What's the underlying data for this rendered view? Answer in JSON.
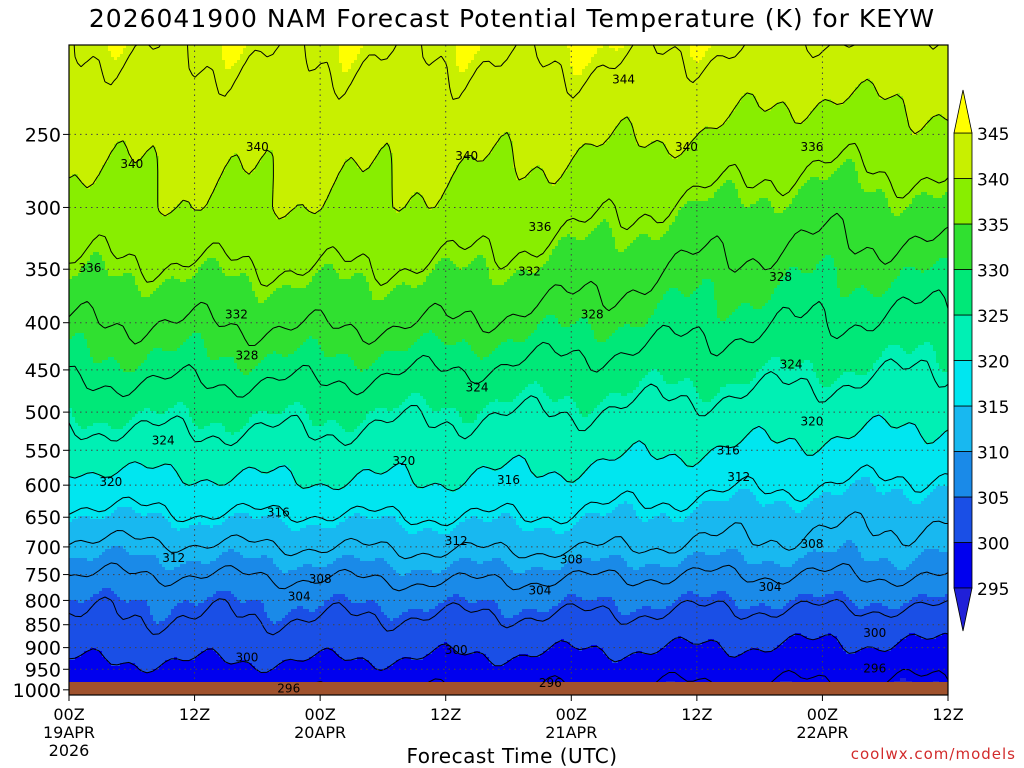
{
  "chart_data": {
    "type": "heatmap",
    "title": "2026041900 NAM Forecast Potential Temperature (K) for KEYW",
    "xlabel": "Forecast Time (UTC)",
    "ylabel": "",
    "station": "KEYW",
    "variable": "Potential Temperature",
    "units": "K",
    "x_ticks": [
      {
        "hour": 0,
        "label": "00Z",
        "date": "19APR",
        "year": "2026"
      },
      {
        "hour": 12,
        "label": "12Z",
        "date": "",
        "year": ""
      },
      {
        "hour": 24,
        "label": "00Z",
        "date": "20APR",
        "year": ""
      },
      {
        "hour": 36,
        "label": "12Z",
        "date": "",
        "year": ""
      },
      {
        "hour": 48,
        "label": "00Z",
        "date": "21APR",
        "year": ""
      },
      {
        "hour": 60,
        "label": "12Z",
        "date": "",
        "year": ""
      },
      {
        "hour": 72,
        "label": "00Z",
        "date": "22APR",
        "year": ""
      },
      {
        "hour": 84,
        "label": "12Z",
        "date": "",
        "year": ""
      }
    ],
    "xlim": [
      0,
      84
    ],
    "y_ticks": [
      250,
      300,
      350,
      400,
      450,
      500,
      550,
      600,
      650,
      700,
      750,
      800,
      850,
      900,
      950,
      1000
    ],
    "ylim": [
      1013,
      200
    ],
    "y_scale": "log",
    "grid": true,
    "colorbar": {
      "levels": [
        295,
        300,
        305,
        310,
        315,
        320,
        325,
        330,
        335,
        340,
        345
      ],
      "colors": [
        "#2020d8",
        "#0000ee",
        "#1a4fe6",
        "#1a8ae8",
        "#18b8f0",
        "#00e6f0",
        "#00f0b4",
        "#00e878",
        "#30e030",
        "#88ee00",
        "#c8f000",
        "#ffff00"
      ],
      "extend": "both"
    },
    "contour_levels": [
      296,
      300,
      304,
      308,
      312,
      316,
      320,
      324,
      328,
      332,
      336,
      340,
      344
    ],
    "profile_times": [
      0,
      12,
      24,
      36,
      48,
      60,
      72,
      84
    ],
    "profile_pressures": [
      1000,
      950,
      900,
      850,
      800,
      750,
      700,
      650,
      600,
      550,
      500,
      450,
      400,
      350,
      300,
      250,
      200
    ],
    "profiles": [
      [
        296.5,
        299.0,
        301.5,
        303.5,
        305.0,
        308.0,
        311.0,
        314.5,
        318.0,
        322.0,
        325.5,
        329.0,
        332.0,
        335.5,
        338.5,
        341.0,
        344.0
      ],
      [
        296.5,
        299.2,
        301.5,
        303.5,
        305.0,
        308.0,
        311.5,
        315.5,
        319.0,
        322.5,
        325.5,
        329.0,
        332.0,
        335.5,
        339.5,
        341.5,
        344.5
      ],
      [
        296.3,
        299.0,
        301.5,
        303.5,
        305.5,
        308.5,
        312.0,
        315.5,
        319.5,
        322.5,
        325.5,
        329.0,
        332.5,
        336.0,
        339.5,
        341.5,
        344.5
      ],
      [
        296.0,
        298.5,
        301.0,
        303.0,
        305.5,
        309.0,
        312.5,
        316.0,
        319.5,
        322.0,
        324.5,
        328.0,
        332.0,
        335.5,
        339.0,
        341.5,
        344.5
      ],
      [
        295.8,
        298.0,
        300.5,
        303.0,
        305.5,
        308.5,
        312.5,
        315.5,
        318.5,
        321.5,
        324.0,
        327.0,
        330.5,
        334.0,
        337.5,
        341.0,
        345.0
      ],
      [
        295.3,
        297.5,
        300.0,
        302.5,
        305.0,
        308.0,
        311.5,
        314.0,
        317.0,
        320.0,
        323.0,
        326.0,
        329.0,
        331.5,
        335.0,
        340.0,
        344.5
      ],
      [
        295.2,
        297.3,
        299.5,
        302.0,
        305.0,
        308.0,
        311.0,
        313.0,
        316.0,
        319.0,
        322.0,
        325.0,
        328.0,
        330.5,
        333.5,
        337.5,
        343.5
      ],
      [
        295.0,
        297.0,
        299.5,
        302.0,
        305.0,
        308.5,
        310.5,
        312.5,
        315.0,
        318.0,
        321.0,
        324.0,
        327.0,
        330.5,
        334.5,
        339.0,
        343.0
      ]
    ],
    "contour_labels": [
      {
        "value": "296",
        "hour": 21,
        "p": 997
      },
      {
        "value": "296",
        "hour": 46,
        "p": 983
      },
      {
        "value": "296",
        "hour": 77,
        "p": 948
      },
      {
        "value": "300",
        "hour": 17,
        "p": 922
      },
      {
        "value": "300",
        "hour": 37,
        "p": 905
      },
      {
        "value": "300",
        "hour": 77,
        "p": 868
      },
      {
        "value": "304",
        "hour": 22,
        "p": 792
      },
      {
        "value": "304",
        "hour": 45,
        "p": 780
      },
      {
        "value": "304",
        "hour": 67,
        "p": 774
      },
      {
        "value": "308",
        "hour": 24,
        "p": 758
      },
      {
        "value": "308",
        "hour": 48,
        "p": 722
      },
      {
        "value": "308",
        "hour": 71,
        "p": 695
      },
      {
        "value": "312",
        "hour": 10,
        "p": 720
      },
      {
        "value": "312",
        "hour": 37,
        "p": 690
      },
      {
        "value": "312",
        "hour": 64,
        "p": 588
      },
      {
        "value": "316",
        "hour": 20,
        "p": 642
      },
      {
        "value": "316",
        "hour": 42,
        "p": 592
      },
      {
        "value": "316",
        "hour": 63,
        "p": 550
      },
      {
        "value": "320",
        "hour": 4,
        "p": 595
      },
      {
        "value": "320",
        "hour": 32,
        "p": 565
      },
      {
        "value": "320",
        "hour": 71,
        "p": 512
      },
      {
        "value": "324",
        "hour": 9,
        "p": 537
      },
      {
        "value": "324",
        "hour": 39,
        "p": 470
      },
      {
        "value": "324",
        "hour": 69,
        "p": 444
      },
      {
        "value": "328",
        "hour": 17,
        "p": 434
      },
      {
        "value": "328",
        "hour": 50,
        "p": 392
      },
      {
        "value": "328",
        "hour": 68,
        "p": 357
      },
      {
        "value": "332",
        "hour": 16,
        "p": 392
      },
      {
        "value": "332",
        "hour": 44,
        "p": 352
      },
      {
        "value": "336",
        "hour": 2,
        "p": 349
      },
      {
        "value": "336",
        "hour": 45,
        "p": 315
      },
      {
        "value": "336",
        "hour": 71,
        "p": 258
      },
      {
        "value": "340",
        "hour": 6,
        "p": 269
      },
      {
        "value": "340",
        "hour": 18,
        "p": 258
      },
      {
        "value": "340",
        "hour": 38,
        "p": 264
      },
      {
        "value": "340",
        "hour": 59,
        "p": 258
      },
      {
        "value": "344",
        "hour": 53,
        "p": 218
      }
    ]
  },
  "credit": "coolwx.com/models"
}
